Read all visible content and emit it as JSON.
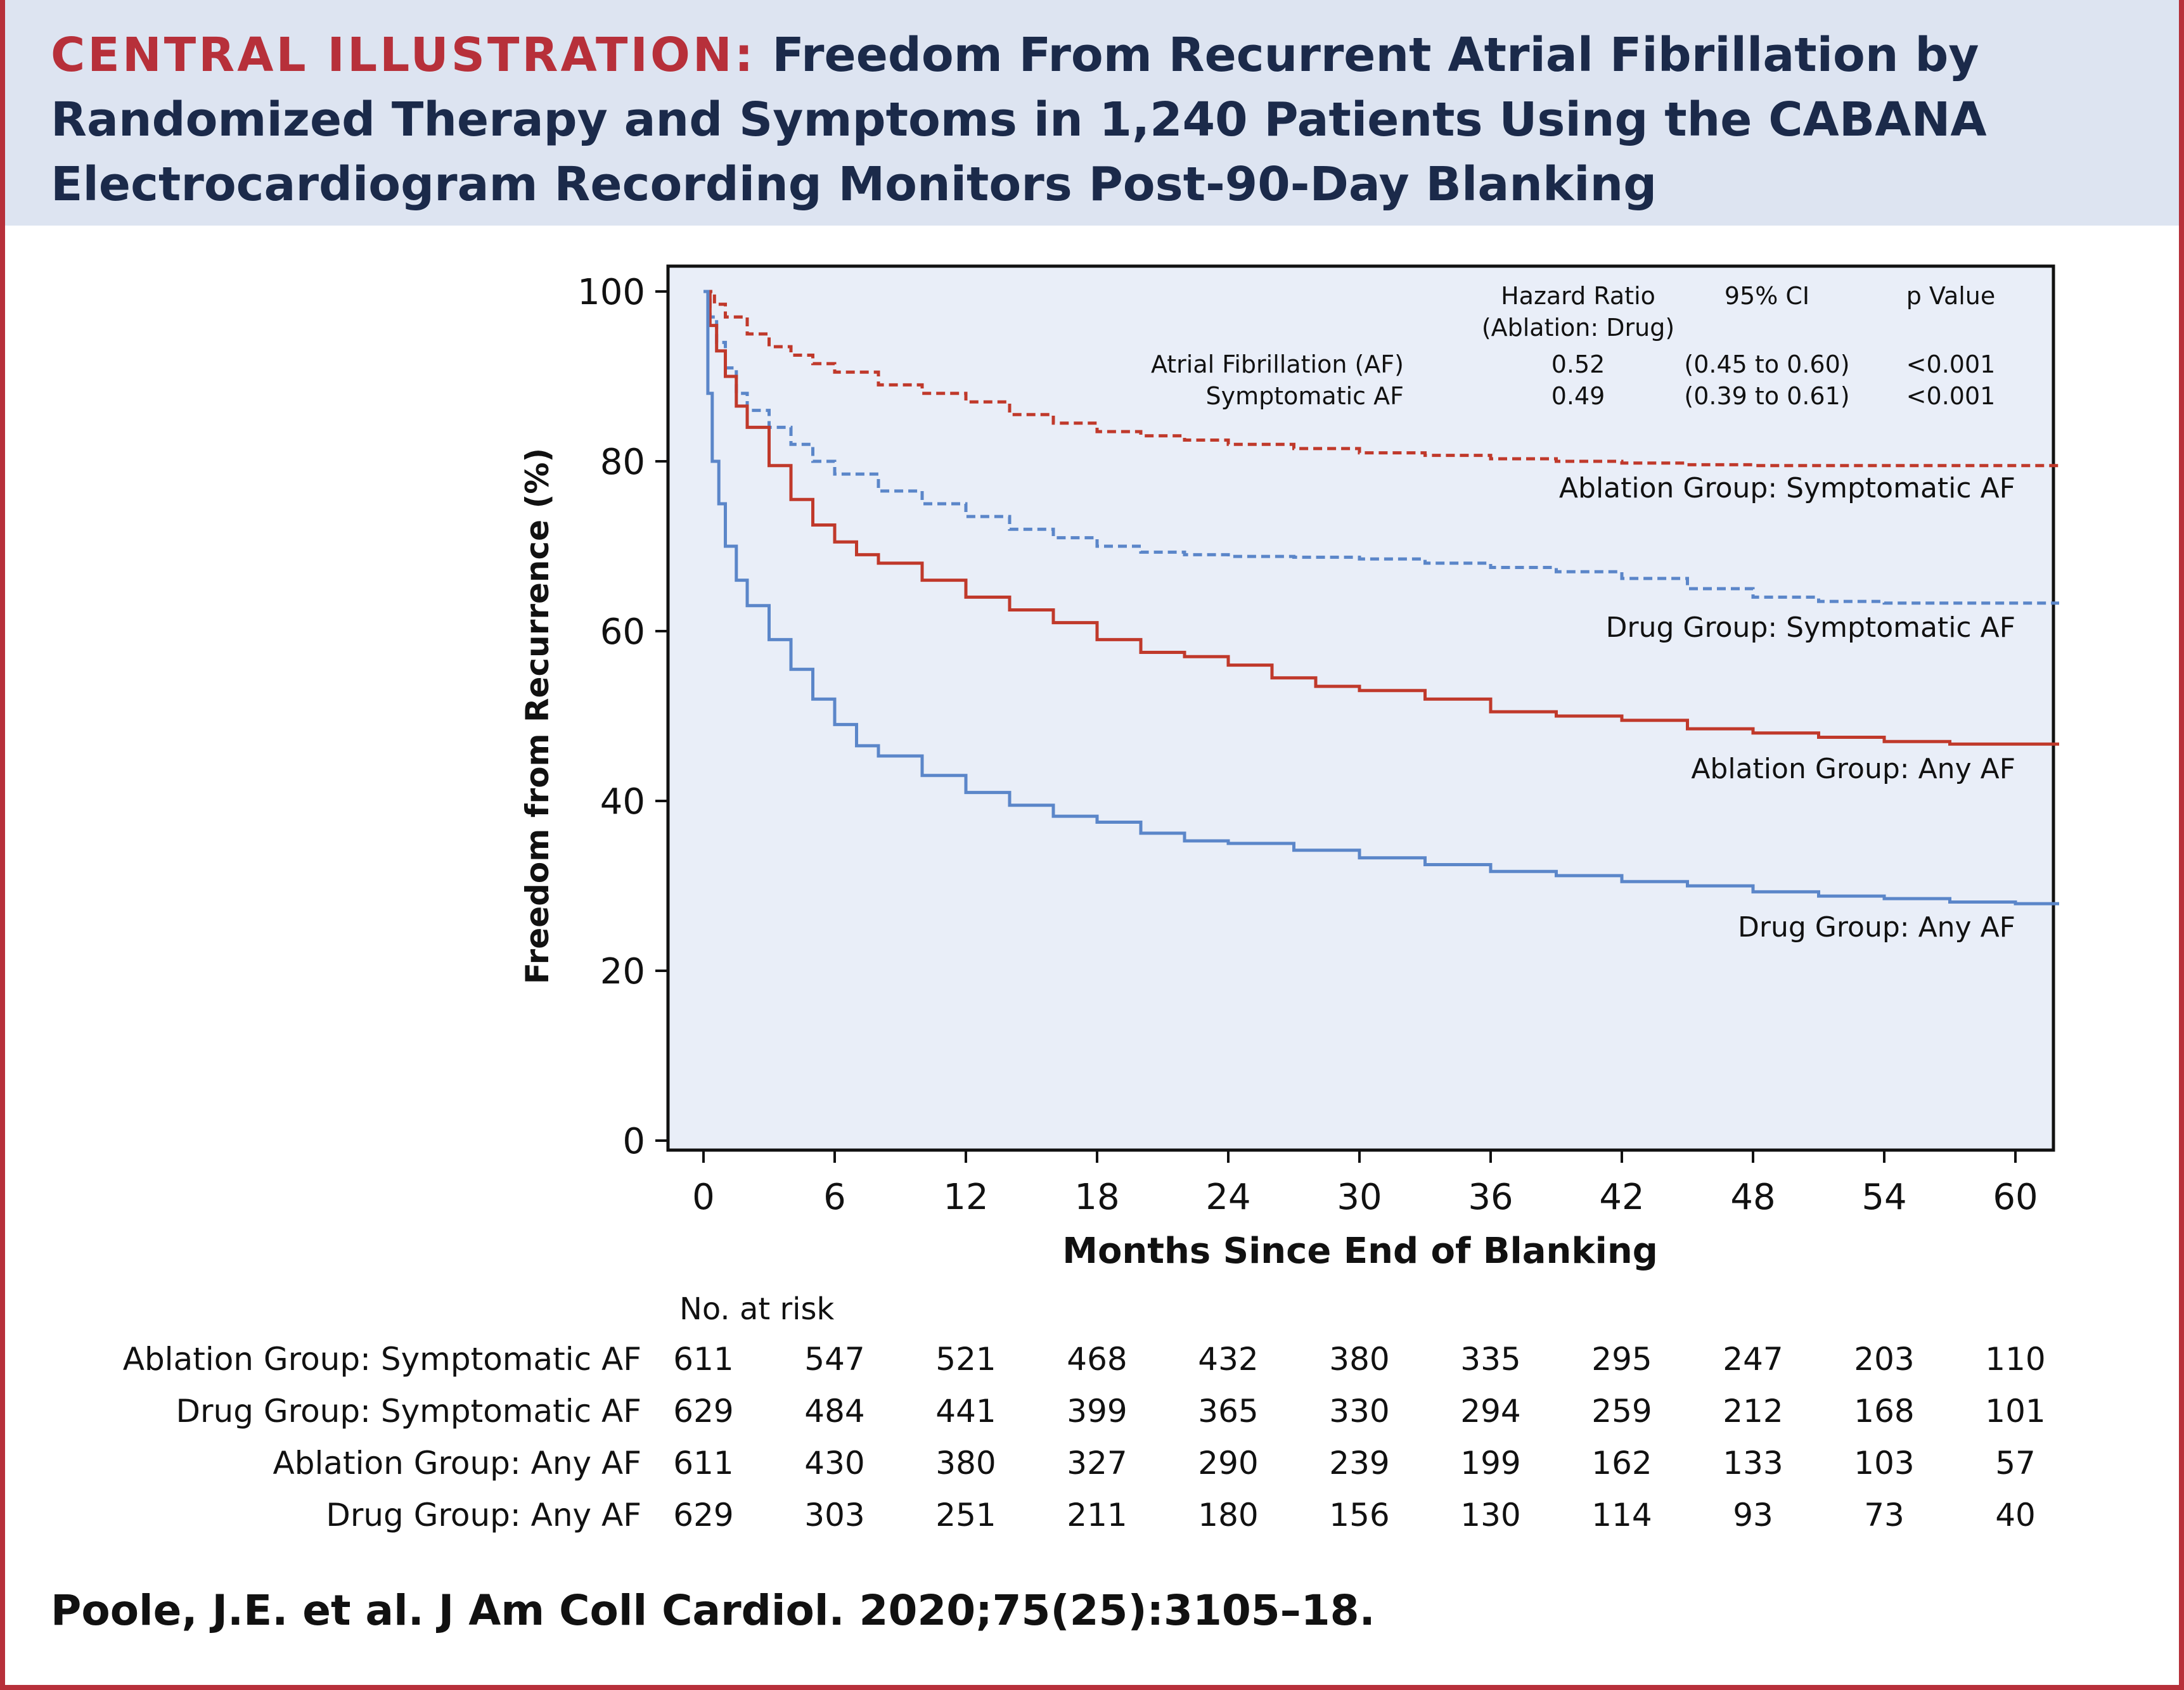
{
  "header": {
    "label": "CENTRAL ILLUSTRATION:",
    "title": "Freedom From Recurrent Atrial Fibrillation by Randomized Therapy and Symptoms in 1,240 Patients Using the CABANA Electrocardiogram Recording Monitors Post-90-Day Blanking"
  },
  "colors": {
    "accent": "#b7303a",
    "header_bg": "#dde4f1",
    "plot_bg": "#e9eef8",
    "ablation": "#c0392b",
    "drug": "#5b86c9",
    "title_text": "#1b2a4a"
  },
  "chart_data": {
    "type": "line",
    "xlabel": "Months Since End of Blanking",
    "ylabel": "Freedom from Recurrence (%)",
    "xlim": [
      0,
      62
    ],
    "ylim": [
      0,
      100
    ],
    "x_ticks": [
      0,
      6,
      12,
      18,
      24,
      30,
      36,
      42,
      48,
      54,
      60
    ],
    "y_ticks": [
      0,
      20,
      40,
      60,
      80,
      100
    ],
    "grid": false,
    "series": [
      {
        "name": "Ablation Group: Symptomatic AF",
        "group": "ablation",
        "style": "dashed",
        "x": [
          0,
          0.5,
          1,
          2,
          3,
          4,
          5,
          6,
          8,
          10,
          12,
          14,
          16,
          18,
          20,
          22,
          24,
          27,
          30,
          33,
          36,
          39,
          42,
          45,
          48,
          51,
          54,
          57,
          60,
          62
        ],
        "y": [
          100,
          98.5,
          97,
          95,
          93.5,
          92.5,
          91.5,
          90.5,
          89,
          88,
          87,
          85.5,
          84.5,
          83.5,
          83,
          82.5,
          82,
          81.5,
          81,
          80.7,
          80.3,
          80,
          79.8,
          79.6,
          79.5,
          79.5,
          79.5,
          79.5,
          79.5,
          79.5
        ]
      },
      {
        "name": "Drug Group: Symptomatic AF",
        "group": "drug",
        "style": "dashed",
        "x": [
          0,
          0.3,
          0.6,
          1,
          1.5,
          2,
          3,
          4,
          5,
          6,
          8,
          10,
          12,
          14,
          16,
          18,
          20,
          22,
          24,
          27,
          30,
          33,
          36,
          39,
          42,
          45,
          48,
          51,
          54,
          57,
          60,
          62
        ],
        "y": [
          100,
          97,
          94,
          91,
          88,
          86,
          84,
          82,
          80,
          78.5,
          76.5,
          75,
          73.5,
          72,
          71,
          70,
          69.3,
          69,
          68.8,
          68.7,
          68.5,
          68,
          67.5,
          67,
          66.2,
          65,
          64,
          63.5,
          63.3,
          63.3,
          63.3,
          63.3
        ]
      },
      {
        "name": "Ablation Group: Any AF",
        "group": "ablation",
        "style": "solid",
        "x": [
          0,
          0.3,
          0.6,
          1,
          1.5,
          2,
          3,
          4,
          5,
          6,
          7,
          8,
          10,
          12,
          14,
          16,
          18,
          20,
          22,
          24,
          26,
          28,
          30,
          33,
          36,
          39,
          42,
          45,
          48,
          51,
          54,
          57,
          60,
          62
        ],
        "y": [
          100,
          96,
          93,
          90,
          86.5,
          84,
          79.5,
          75.5,
          72.5,
          70.5,
          69,
          68,
          66,
          64,
          62.5,
          61,
          59,
          57.5,
          57,
          56,
          54.5,
          53.5,
          53,
          52,
          50.5,
          50,
          49.5,
          48.5,
          48,
          47.5,
          47,
          46.7,
          46.7,
          46.7
        ]
      },
      {
        "name": "Drug Group: Any AF",
        "group": "drug",
        "style": "solid",
        "x": [
          0,
          0.2,
          0.4,
          0.7,
          1,
          1.5,
          2,
          3,
          4,
          5,
          6,
          7,
          8,
          10,
          12,
          14,
          16,
          18,
          20,
          22,
          24,
          27,
          30,
          33,
          36,
          39,
          42,
          45,
          48,
          51,
          54,
          57,
          60,
          62
        ],
        "y": [
          100,
          88,
          80,
          75,
          70,
          66,
          63,
          59,
          55.5,
          52,
          49,
          46.5,
          45.3,
          43,
          41,
          39.5,
          38.2,
          37.5,
          36.2,
          35.3,
          35,
          34.2,
          33.3,
          32.5,
          31.7,
          31.2,
          30.5,
          30,
          29.3,
          28.8,
          28.5,
          28.1,
          27.9,
          27.9
        ]
      }
    ],
    "annotations": [
      "Ablation Group: Symptomatic AF",
      "Drug Group: Symptomatic AF",
      "Ablation Group: Any AF",
      "Drug Group: Any AF"
    ],
    "hr_table": {
      "headers": [
        "Hazard Ratio",
        "(Ablation: Drug)",
        "95% CI",
        "p Value"
      ],
      "rows": [
        {
          "label": "Atrial Fibrillation (AF)",
          "hr": "0.52",
          "ci": "(0.45 to 0.60)",
          "p": "<0.001"
        },
        {
          "label": "Symptomatic AF",
          "hr": "0.49",
          "ci": "(0.39 to 0.61)",
          "p": "<0.001"
        }
      ]
    },
    "risk_table": {
      "title": "No. at risk",
      "rows": [
        {
          "label": "Ablation Group: Symptomatic AF",
          "values": [
            611,
            547,
            521,
            468,
            432,
            380,
            335,
            295,
            247,
            203,
            110
          ]
        },
        {
          "label": "Drug Group: Symptomatic AF",
          "values": [
            629,
            484,
            441,
            399,
            365,
            330,
            294,
            259,
            212,
            168,
            101
          ]
        },
        {
          "label": "Ablation Group: Any AF",
          "values": [
            611,
            430,
            380,
            327,
            290,
            239,
            199,
            162,
            133,
            103,
            57
          ]
        },
        {
          "label": "Drug Group: Any AF",
          "values": [
            629,
            303,
            251,
            211,
            180,
            156,
            130,
            114,
            93,
            73,
            40
          ]
        }
      ]
    }
  },
  "citation": "Poole, J.E. et al. J Am Coll Cardiol. 2020;75(25):3105–18."
}
